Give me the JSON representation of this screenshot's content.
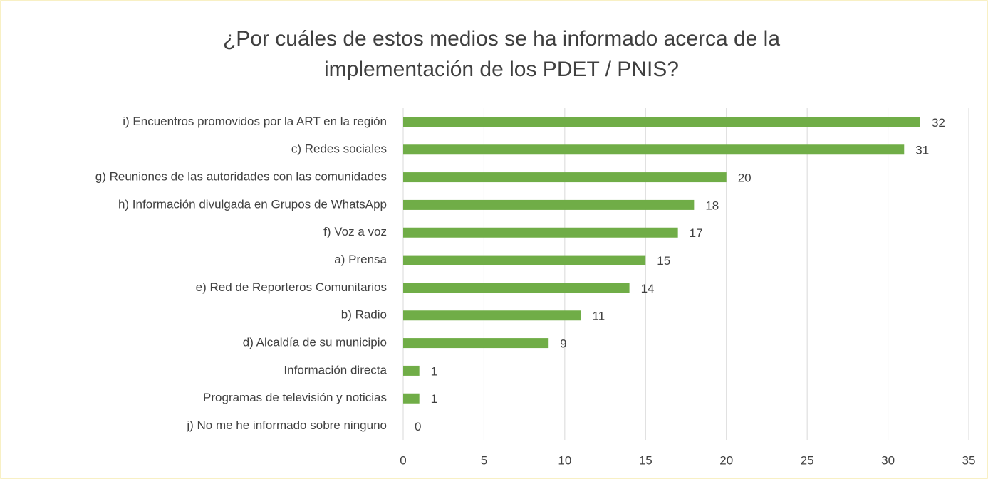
{
  "chart_data": {
    "type": "bar",
    "orientation": "horizontal",
    "title": [
      "¿Por cuáles de estos medios se ha informado acerca de la",
      "implementación de los PDET / PNIS?"
    ],
    "categories": [
      "i) Encuentros promovidos por la ART en la región",
      "c) Redes sociales",
      "g) Reuniones de las autoridades con las comunidades",
      "h) Información divulgada en Grupos de WhatsApp",
      "f) Voz a voz",
      "a) Prensa",
      "e) Red de Reporteros Comunitarios",
      "b) Radio",
      "d) Alcaldía de su municipio",
      "Información directa",
      "Programas de televisión y noticias",
      "j) No me he informado sobre ninguno"
    ],
    "values": [
      32,
      31,
      20,
      18,
      17,
      15,
      14,
      11,
      9,
      1,
      1,
      0
    ],
    "color": "#70ad47",
    "xlim": [
      0,
      35
    ],
    "xticks": [
      0,
      5,
      10,
      15,
      20,
      25,
      30,
      35
    ],
    "grid": true
  }
}
